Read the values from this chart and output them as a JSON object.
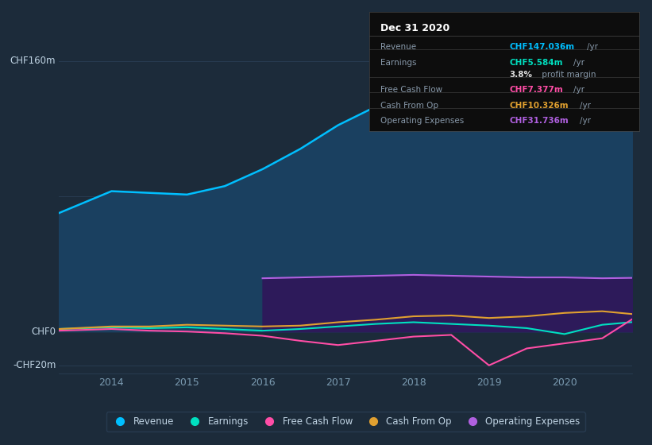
{
  "background_color": "#1c2b3a",
  "plot_bg_color": "#1c2b3a",
  "years": [
    2013.3,
    2014.0,
    2014.5,
    2015.0,
    2015.5,
    2016.0,
    2016.5,
    2017.0,
    2017.5,
    2018.0,
    2018.5,
    2019.0,
    2019.5,
    2020.0,
    2020.5,
    2020.9
  ],
  "revenue": [
    70,
    83,
    82,
    81,
    86,
    96,
    108,
    122,
    133,
    142,
    147,
    151,
    154,
    153,
    148,
    147
  ],
  "earnings": [
    1.5,
    2.5,
    2.0,
    2.5,
    1.5,
    0.5,
    1.5,
    3.0,
    4.5,
    5.5,
    4.5,
    3.5,
    2.0,
    -1.5,
    4.0,
    5.584
  ],
  "free_cash_flow": [
    0.5,
    1.5,
    0.5,
    0.0,
    -1.0,
    -2.5,
    -5.5,
    -8.0,
    -5.5,
    -3.0,
    -2.0,
    -20.0,
    -10.0,
    -7.0,
    -4.0,
    7.377
  ],
  "cash_from_op": [
    1.5,
    3.0,
    3.0,
    4.0,
    3.5,
    3.0,
    3.5,
    5.5,
    7.0,
    9.0,
    9.5,
    8.0,
    9.0,
    11.0,
    12.0,
    10.326
  ],
  "operating_expenses_x": [
    2016.0,
    2016.5,
    2017.0,
    2017.5,
    2018.0,
    2018.5,
    2019.0,
    2019.5,
    2020.0,
    2020.5,
    2020.9
  ],
  "operating_expenses_y": [
    31.5,
    32.0,
    32.5,
    33.0,
    33.5,
    33.0,
    32.5,
    32.0,
    32.0,
    31.5,
    31.736
  ],
  "ylim": [
    -25,
    175
  ],
  "xlim_start": 2013.3,
  "xlim_end": 2020.9,
  "xticks": [
    2014,
    2015,
    2016,
    2017,
    2018,
    2019,
    2020
  ],
  "revenue_color": "#00bfff",
  "earnings_color": "#00e0c0",
  "free_cash_flow_color": "#ff4da6",
  "cash_from_op_color": "#e0a030",
  "operating_expenses_color": "#b060e0",
  "revenue_fill_color": "#1a4060",
  "operating_fill_color": "#2d1a5a",
  "grid_color": "#2a3f55",
  "text_color": "#7a9ab0",
  "text_color_light": "#c0d4e4",
  "tooltip_title": "Dec 31 2020",
  "legend_items": [
    {
      "label": "Revenue",
      "color": "#00bfff"
    },
    {
      "label": "Earnings",
      "color": "#00e0c0"
    },
    {
      "label": "Free Cash Flow",
      "color": "#ff4da6"
    },
    {
      "label": "Cash From Op",
      "color": "#e0a030"
    },
    {
      "label": "Operating Expenses",
      "color": "#b060e0"
    }
  ]
}
